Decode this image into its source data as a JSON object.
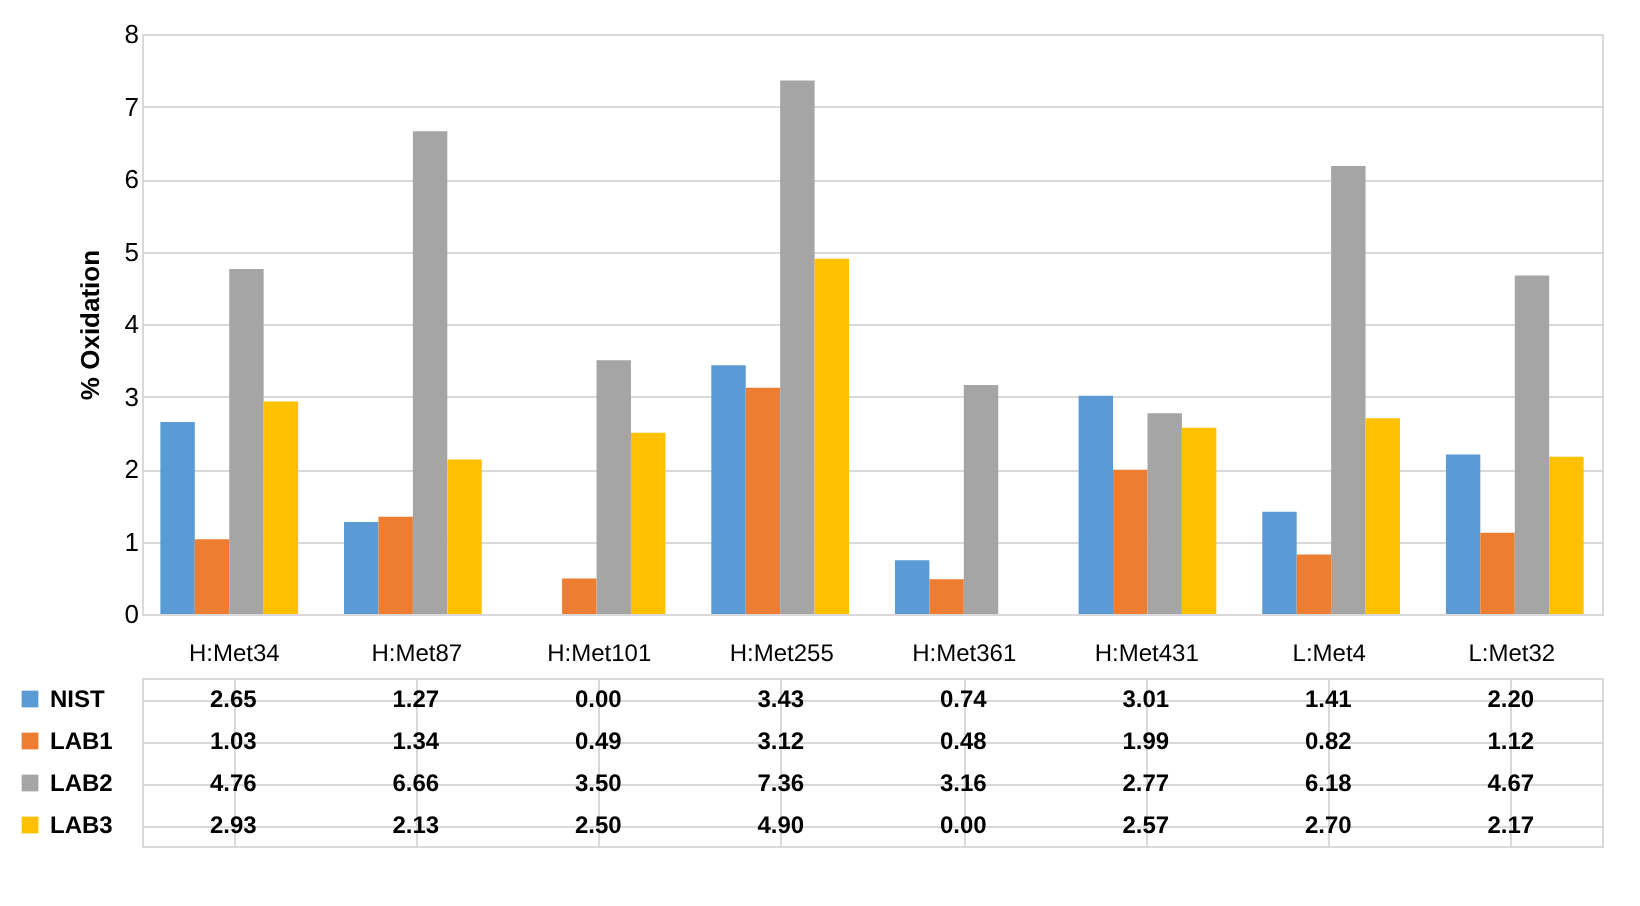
{
  "chart_data": {
    "type": "bar",
    "ylabel": "% Oxidation",
    "categories": [
      "H:Met34",
      "H:Met87",
      "H:Met101",
      "H:Met255",
      "H:Met361",
      "H:Met431",
      "L:Met4",
      "L:Met32"
    ],
    "series": [
      {
        "name": "NIST",
        "color": "#5b9bd5",
        "values": [
          2.65,
          1.27,
          0.0,
          3.43,
          0.74,
          3.01,
          1.41,
          2.2
        ],
        "value_labels": [
          "2.65",
          "1.27",
          "0.00",
          "3.43",
          "0.74",
          "3.01",
          "1.41",
          "2.20"
        ]
      },
      {
        "name": "LAB1",
        "color": "#ed7d31",
        "values": [
          1.03,
          1.34,
          0.49,
          3.12,
          0.48,
          1.99,
          0.82,
          1.12
        ],
        "value_labels": [
          "1.03",
          "1.34",
          "0.49",
          "3.12",
          "0.48",
          "1.99",
          "0.82",
          "1.12"
        ]
      },
      {
        "name": "LAB2",
        "color": "#a5a5a5",
        "values": [
          4.76,
          6.66,
          3.5,
          7.36,
          3.16,
          2.77,
          6.18,
          4.67
        ],
        "value_labels": [
          "4.76",
          "6.66",
          "3.50",
          "7.36",
          "3.16",
          "2.77",
          "6.18",
          "4.67"
        ]
      },
      {
        "name": "LAB3",
        "color": "#ffc000",
        "values": [
          2.93,
          2.13,
          2.5,
          4.9,
          0.0,
          2.57,
          2.7,
          2.17
        ],
        "value_labels": [
          "2.93",
          "2.13",
          "2.50",
          "4.90",
          "0.00",
          "2.57",
          "2.70",
          "2.17"
        ]
      }
    ],
    "ylim": [
      0,
      8
    ],
    "yticks": [
      0,
      1,
      2,
      3,
      4,
      5,
      6,
      7,
      8
    ],
    "grid": "y",
    "legend": "bottom"
  }
}
